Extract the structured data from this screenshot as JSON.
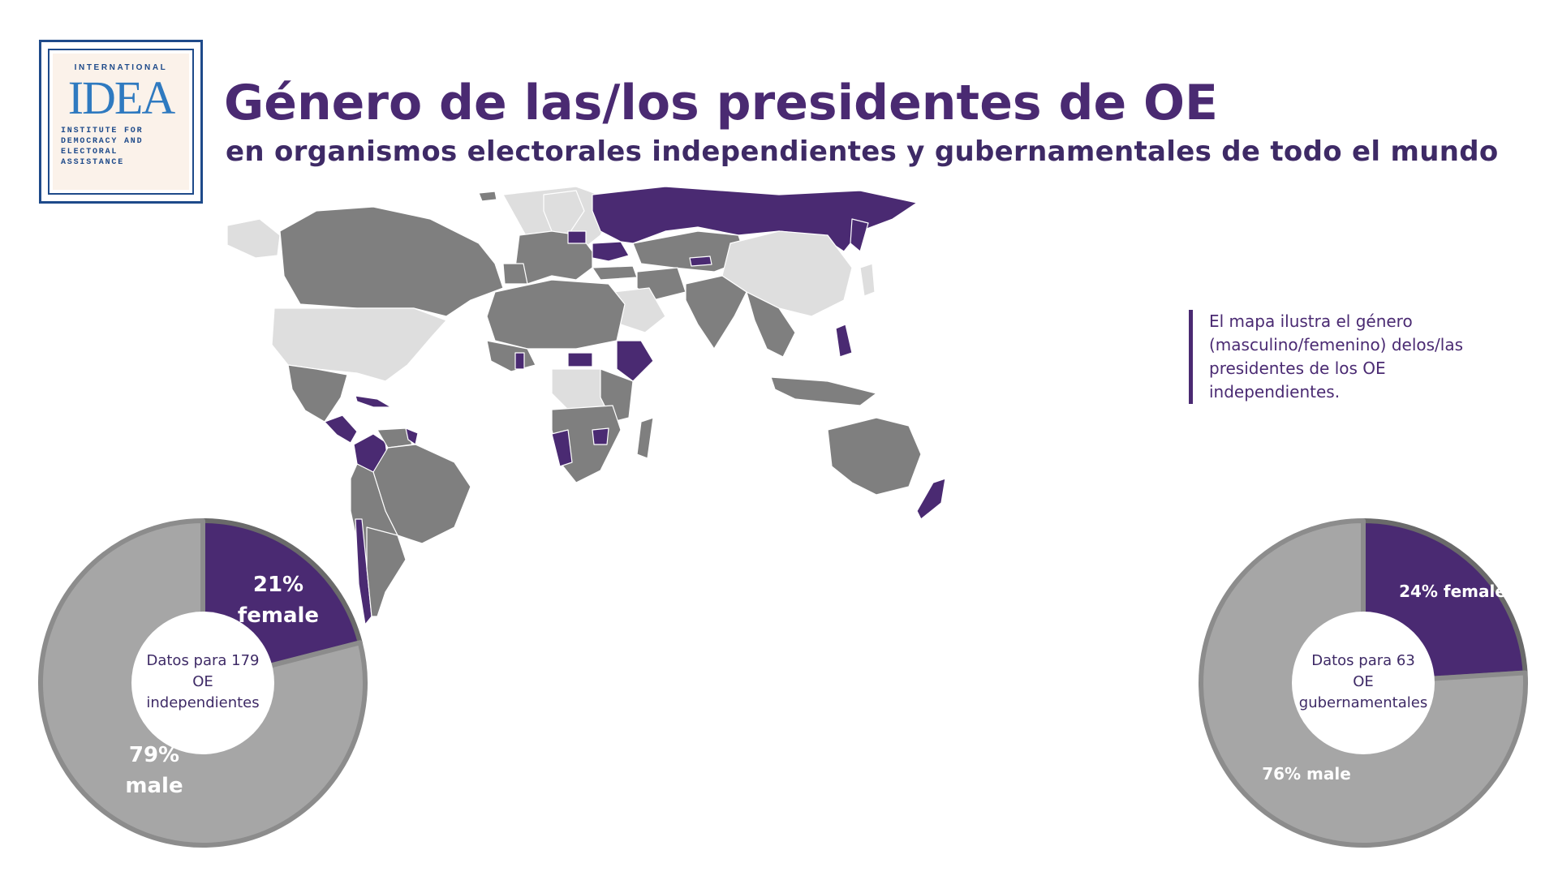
{
  "logo": {
    "top": "INTERNATIONAL",
    "main": "IDEA",
    "sub": [
      "INSTITUTE FOR",
      "DEMOCRACY AND",
      "ELECTORAL",
      "ASSISTANCE"
    ]
  },
  "title": "Género de las/los presidentes de OE",
  "subtitle": "en organismos electorales independientes y gubernamentales de todo el mundo",
  "note": "El mapa ilustra el género (masculino/femenino) delos/las presidentes de los OE independientes.",
  "colors": {
    "female": "#4a2a72",
    "male_map": "#7f7f7f",
    "no_data_map": "#dedede",
    "male_pie": "#a6a6a6",
    "title": "#4a2a72"
  },
  "chart_data": [
    {
      "type": "pie",
      "title": "",
      "center_label": [
        "Datos para 179",
        "OE",
        "independientes"
      ],
      "slices": [
        {
          "label": "female",
          "value": 21,
          "display": [
            "21%",
            "female"
          ]
        },
        {
          "label": "male",
          "value": 79,
          "display": [
            "79%",
            "male"
          ]
        }
      ]
    },
    {
      "type": "pie",
      "title": "",
      "center_label": [
        "Datos para 63",
        "OE",
        "gubernamentales"
      ],
      "slices": [
        {
          "label": "female",
          "value": 24,
          "display": [
            "24% female"
          ]
        },
        {
          "label": "male",
          "value": 76,
          "display": [
            "76% male"
          ]
        }
      ]
    }
  ]
}
